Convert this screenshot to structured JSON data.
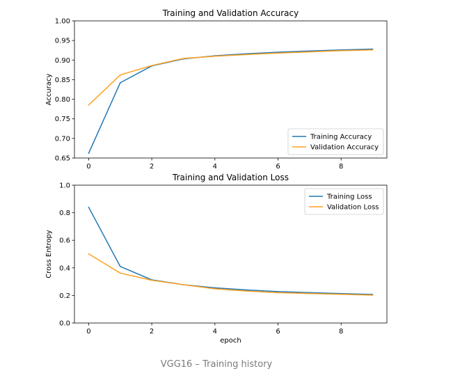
{
  "colors": {
    "train": "#1f77b4",
    "val": "#ff9f1c"
  },
  "caption": "VGG16 – Training history",
  "chart_data": [
    {
      "type": "line",
      "title": "Training and Validation Accuracy",
      "xlabel": "",
      "ylabel": "Accuracy",
      "xlim": [
        -0.45,
        9.45
      ],
      "ylim": [
        0.65,
        1.0
      ],
      "xticks": [
        0,
        2,
        4,
        6,
        8
      ],
      "xtick_labels": [
        "0",
        "2",
        "4",
        "6",
        "8"
      ],
      "yticks": [
        0.65,
        0.7,
        0.75,
        0.8,
        0.85,
        0.9,
        0.95,
        1.0
      ],
      "ytick_labels": [
        "0.65",
        "0.70",
        "0.75",
        "0.80",
        "0.85",
        "0.90",
        "0.95",
        "1.00"
      ],
      "legend_position": "lower-right",
      "grid": false,
      "x": [
        0,
        1,
        2,
        3,
        4,
        5,
        6,
        7,
        8,
        9
      ],
      "series": [
        {
          "name": "Training Accuracy",
          "color_key": "train",
          "values": [
            0.662,
            0.842,
            0.885,
            0.903,
            0.911,
            0.916,
            0.92,
            0.923,
            0.926,
            0.928
          ]
        },
        {
          "name": "Validation Accuracy",
          "color_key": "val",
          "values": [
            0.785,
            0.862,
            0.886,
            0.904,
            0.91,
            0.914,
            0.918,
            0.921,
            0.924,
            0.926
          ]
        }
      ]
    },
    {
      "type": "line",
      "title": "Training and Validation Loss",
      "xlabel": "epoch",
      "ylabel": "Cross Entropy",
      "xlim": [
        -0.45,
        9.45
      ],
      "ylim": [
        0.0,
        1.0
      ],
      "xticks": [
        0,
        2,
        4,
        6,
        8
      ],
      "xtick_labels": [
        "0",
        "2",
        "4",
        "6",
        "8"
      ],
      "yticks": [
        0.0,
        0.2,
        0.4,
        0.6,
        0.8,
        1.0
      ],
      "ytick_labels": [
        "0.0",
        "0.2",
        "0.4",
        "0.6",
        "0.8",
        "1.0"
      ],
      "legend_position": "upper-right",
      "grid": false,
      "x": [
        0,
        1,
        2,
        3,
        4,
        5,
        6,
        7,
        8,
        9
      ],
      "series": [
        {
          "name": "Training Loss",
          "color_key": "train",
          "values": [
            0.84,
            0.41,
            0.313,
            0.278,
            0.255,
            0.24,
            0.228,
            0.22,
            0.213,
            0.207
          ]
        },
        {
          "name": "Validation Loss",
          "color_key": "val",
          "values": [
            0.502,
            0.362,
            0.31,
            0.278,
            0.248,
            0.232,
            0.22,
            0.214,
            0.208,
            0.202
          ]
        }
      ]
    }
  ]
}
